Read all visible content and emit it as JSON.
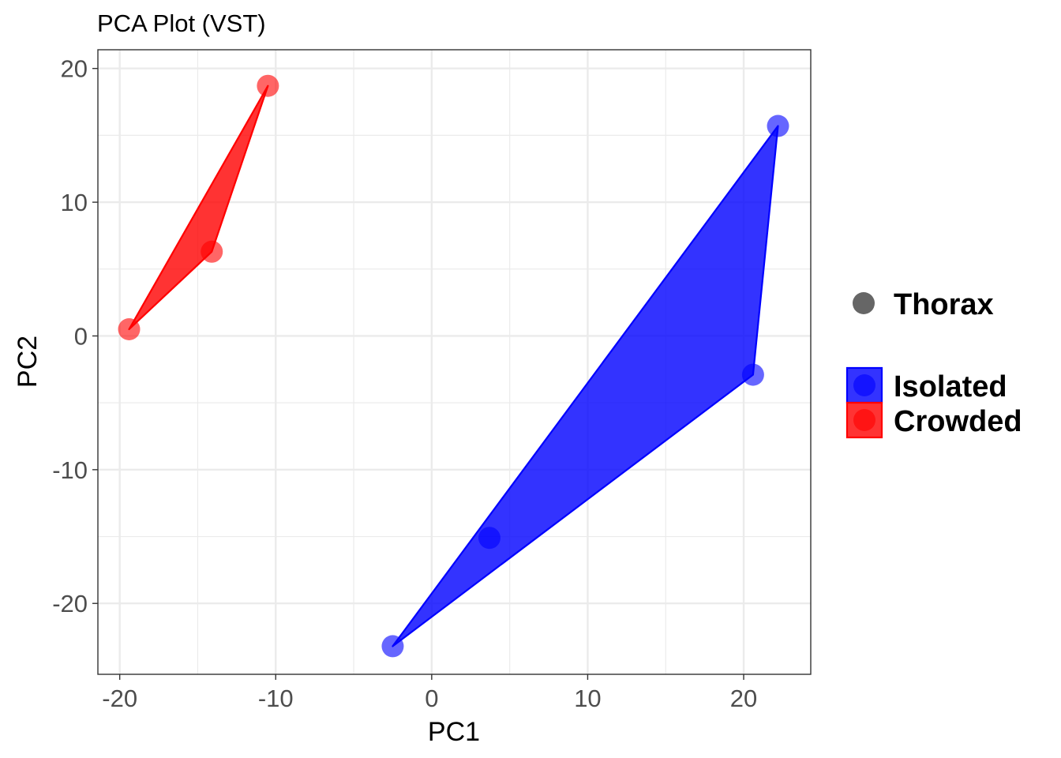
{
  "chart_data": {
    "type": "scatter",
    "title": "PCA Plot (VST)",
    "xlabel": "PC1",
    "ylabel": "PC2",
    "xlim": [
      -21.4,
      24.3
    ],
    "ylim": [
      -25.3,
      21.4
    ],
    "x_ticks": [
      -20,
      -10,
      0,
      10,
      20
    ],
    "y_ticks": [
      -20,
      -10,
      0,
      10,
      20
    ],
    "x_tick_labels": [
      "-20",
      "-10",
      "0",
      "10",
      "20"
    ],
    "y_tick_labels": [
      "-20",
      "-10",
      "0",
      "10",
      "20"
    ],
    "grid": true,
    "legend_position": "right",
    "shape_legend": {
      "label": "Thorax",
      "color": "#666666"
    },
    "series": [
      {
        "name": "Isolated",
        "color": "#0000ff",
        "points": [
          {
            "x": 22.2,
            "y": 15.7
          },
          {
            "x": 20.6,
            "y": -2.9
          },
          {
            "x": 3.7,
            "y": -15.1
          },
          {
            "x": -2.5,
            "y": -23.2
          }
        ],
        "hull": [
          {
            "x": 22.2,
            "y": 15.7
          },
          {
            "x": 20.6,
            "y": -2.9
          },
          {
            "x": -2.5,
            "y": -23.2
          }
        ]
      },
      {
        "name": "Crowded",
        "color": "#ff0000",
        "points": [
          {
            "x": -10.5,
            "y": 18.7
          },
          {
            "x": -14.1,
            "y": 6.3
          },
          {
            "x": -19.4,
            "y": 0.5
          }
        ],
        "hull": [
          {
            "x": -10.5,
            "y": 18.7
          },
          {
            "x": -14.1,
            "y": 6.3
          },
          {
            "x": -19.4,
            "y": 0.5
          }
        ]
      }
    ]
  }
}
